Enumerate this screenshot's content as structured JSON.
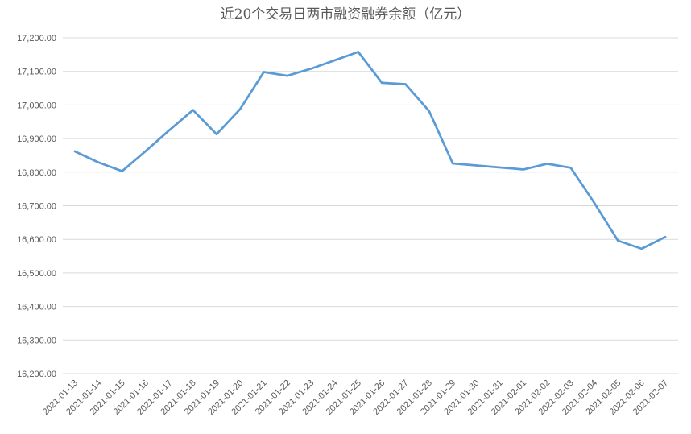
{
  "chart_data": {
    "type": "line",
    "title": "近20个交易日两市融资融券余额（亿元）",
    "xlabel": "",
    "ylabel": "",
    "ylim": [
      16200,
      17200
    ],
    "y_ticks": [
      16200,
      16300,
      16400,
      16500,
      16600,
      16700,
      16800,
      16900,
      17000,
      17100,
      17200
    ],
    "y_tick_labels": [
      "16,200.00",
      "16,300.00",
      "16,400.00",
      "16,500.00",
      "16,600.00",
      "16,700.00",
      "16,800.00",
      "16,900.00",
      "17,000.00",
      "17,100.00",
      "17,200.00"
    ],
    "grid": true,
    "legend": "none",
    "categories": [
      "2021-01-13",
      "2021-01-14",
      "2021-01-15",
      "2021-01-16",
      "2021-01-17",
      "2021-01-18",
      "2021-01-19",
      "2021-01-20",
      "2021-01-21",
      "2021-01-22",
      "2021-01-23",
      "2021-01-24",
      "2021-01-25",
      "2021-01-26",
      "2021-01-27",
      "2021-01-28",
      "2021-01-29",
      "2021-01-30",
      "2021-01-31",
      "2021-02-01",
      "2021-02-02",
      "2021-02-03",
      "2021-02-04",
      "2021-02-05",
      "2021-02-06",
      "2021-02-07"
    ],
    "series": [
      {
        "color": "#5b9bd5",
        "values": [
          16862,
          16829,
          16803,
          16863,
          16925,
          16985,
          16913,
          16988,
          17098,
          17087,
          17108,
          17133,
          17158,
          17066,
          17062,
          16982,
          16826,
          16820,
          16814,
          16808,
          16825,
          16813,
          16708,
          16596,
          16572,
          16607
        ]
      }
    ]
  }
}
